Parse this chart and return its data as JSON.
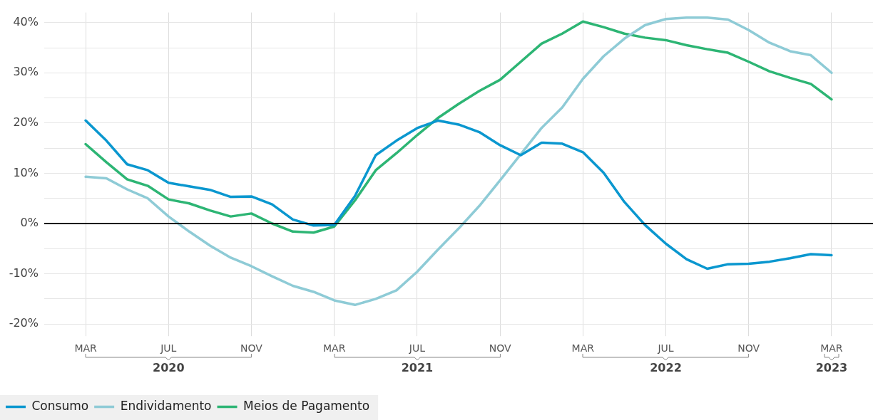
{
  "chart_data": {
    "type": "line",
    "x": [
      "2020-03",
      "2020-04",
      "2020-05",
      "2020-06",
      "2020-07",
      "2020-08",
      "2020-09",
      "2020-10",
      "2020-11",
      "2020-12",
      "2021-01",
      "2021-02",
      "2021-03",
      "2021-04",
      "2021-05",
      "2021-06",
      "2021-07",
      "2021-08",
      "2021-09",
      "2021-10",
      "2021-11",
      "2021-12",
      "2022-01",
      "2022-02",
      "2022-03",
      "2022-04",
      "2022-05",
      "2022-06",
      "2022-07",
      "2022-08",
      "2022-09",
      "2022-10",
      "2022-11",
      "2022-12",
      "2023-01",
      "2023-02",
      "2023-03"
    ],
    "series": [
      {
        "name": "Consumo",
        "color": "#0a97cf",
        "values": [
          20.5,
          16.5,
          11.8,
          10.6,
          8.1,
          7.4,
          6.7,
          5.3,
          5.4,
          3.8,
          0.8,
          -0.4,
          -0.3,
          5.5,
          13.6,
          16.5,
          19,
          20.5,
          19.7,
          18.2,
          15.6,
          13.6,
          16.1,
          15.9,
          14.2,
          10.1,
          4.3,
          -0.3,
          -4,
          -7.1,
          -9,
          -8.1,
          -8,
          -7.6,
          -6.9,
          -6.1,
          -6.3
        ]
      },
      {
        "name": "Endividamento",
        "color": "#8ecbd6",
        "values": [
          9.3,
          9,
          6.8,
          5,
          1.4,
          -1.6,
          -4.4,
          -6.8,
          -8.5,
          -10.5,
          -12.4,
          -13.6,
          -15.3,
          -16.2,
          -15,
          -13.3,
          -9.6,
          -5.2,
          -1,
          3.5,
          8.6,
          13.8,
          19,
          23.1,
          28.8,
          33.3,
          36.8,
          39.5,
          40.7,
          41,
          41,
          40.6,
          38.5,
          36,
          34.3,
          33.5,
          30
        ]
      },
      {
        "name": "Meios de Pagamento",
        "color": "#2db574",
        "values": [
          15.8,
          12.2,
          8.8,
          7.5,
          4.8,
          4,
          2.6,
          1.4,
          2,
          0,
          -1.6,
          -1.8,
          -0.6,
          4.6,
          10.6,
          14,
          17.6,
          21,
          23.8,
          26.4,
          28.6,
          32.2,
          35.8,
          37.8,
          40.2,
          39.1,
          37.8,
          37,
          36.5,
          35.5,
          34.7,
          34,
          32.2,
          30.3,
          29,
          27.8,
          24.7
        ]
      }
    ],
    "xlim": [
      "2020-01",
      "2023-05"
    ],
    "xticks": [
      {
        "value": "2020-03",
        "label": "MAR"
      },
      {
        "value": "2020-07",
        "label": "JUL"
      },
      {
        "value": "2020-11",
        "label": "NOV"
      },
      {
        "value": "2021-03",
        "label": "MAR"
      },
      {
        "value": "2021-07",
        "label": "JUL"
      },
      {
        "value": "2021-11",
        "label": "NOV"
      },
      {
        "value": "2022-03",
        "label": "MAR"
      },
      {
        "value": "2022-07",
        "label": "JUL"
      },
      {
        "value": "2022-11",
        "label": "NOV"
      },
      {
        "value": "2023-03",
        "label": "MAR"
      }
    ],
    "ylim": [
      -21,
      42
    ],
    "yticks": [
      {
        "value": -20,
        "label": "-20%"
      },
      {
        "value": -15,
        "label": null
      },
      {
        "value": -10,
        "label": "-10%"
      },
      {
        "value": -5,
        "label": null
      },
      {
        "value": 0,
        "label": "0%"
      },
      {
        "value": 5,
        "label": null
      },
      {
        "value": 10,
        "label": "10%"
      },
      {
        "value": 15,
        "label": null
      },
      {
        "value": 20,
        "label": "20%"
      },
      {
        "value": 25,
        "label": null
      },
      {
        "value": 30,
        "label": "30%"
      },
      {
        "value": 35,
        "label": null
      },
      {
        "value": 40,
        "label": "40%"
      }
    ],
    "ref_lines": [
      {
        "axis": "y",
        "value": 0,
        "color": "#000000"
      }
    ],
    "annotations": [
      "2020",
      "2021",
      "2022",
      "2023"
    ],
    "grid": true,
    "legend": "bottom left",
    "marker": "none",
    "line_style": "solid"
  }
}
